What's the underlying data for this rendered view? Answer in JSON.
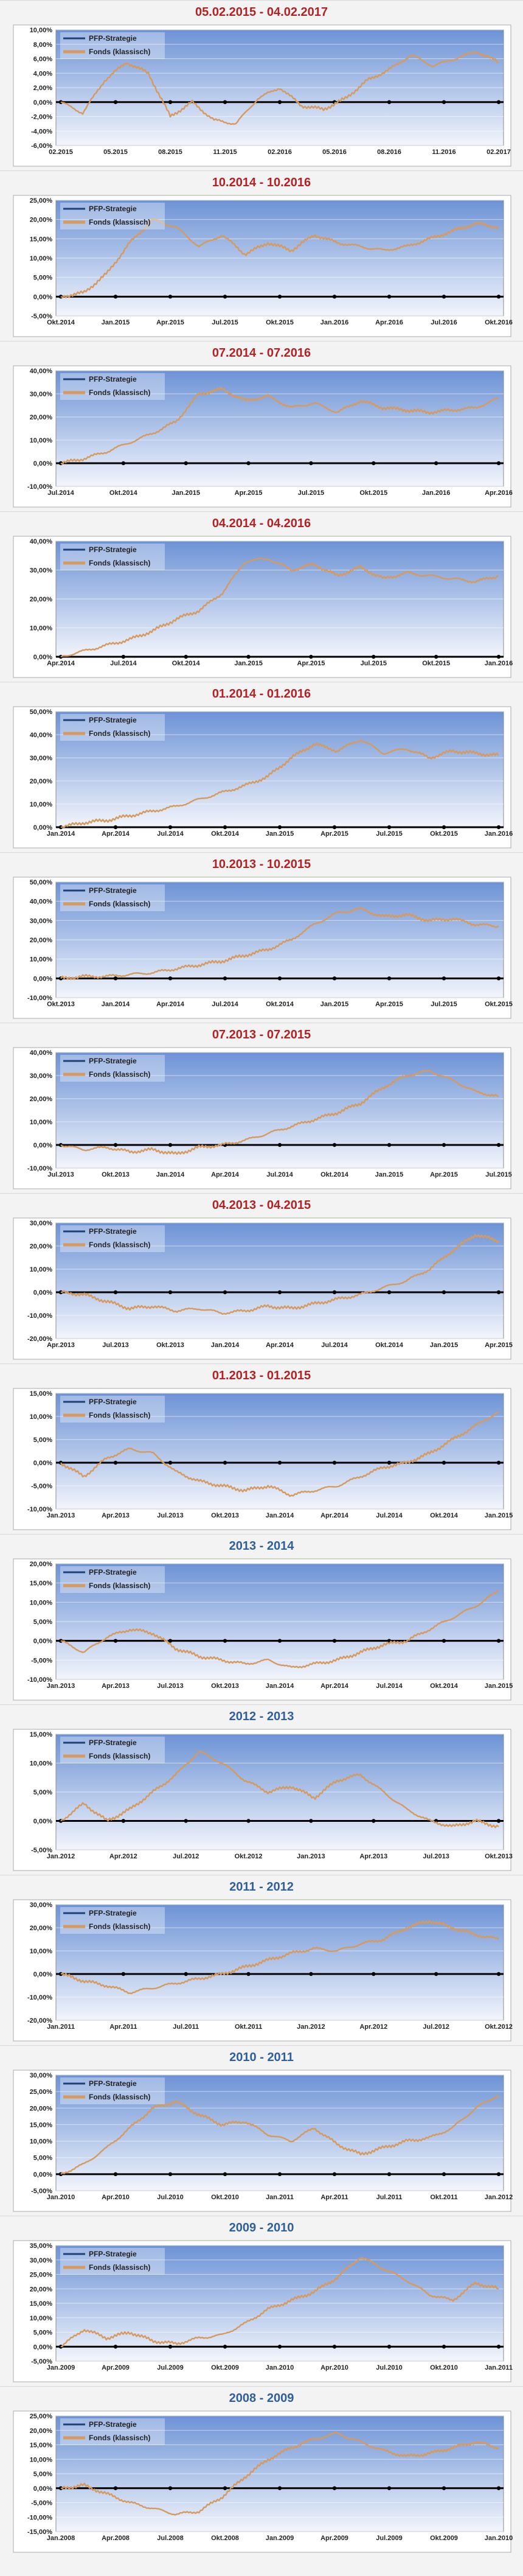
{
  "legend": {
    "strategy": "PFP-Strategie",
    "fund": "Fonds (klassisch)"
  },
  "colors": {
    "title_recent": "#b22222",
    "title_year": "#2f5f9a",
    "strategy_line": "#1f3f7a",
    "fund_line": "#d69a5e",
    "plot_bg_top": "#6d93d6",
    "plot_bg_bottom": "#f2f5fc",
    "zero_line": "#000000"
  },
  "chart_data": [
    {
      "type": "line",
      "title": "05.02.2015 - 04.02.2017",
      "title_style": "recent",
      "yticks": [
        "10,00%",
        "8,00%",
        "6,00%",
        "4,00%",
        "2,00%",
        "0,00%",
        "-2,00%",
        "-4,00%",
        "-6,00%"
      ],
      "xticks": [
        "02.2015",
        "05.2015",
        "08.2015",
        "11.2015",
        "02.2016",
        "05.2016",
        "08.2016",
        "11.2016",
        "02.2017"
      ],
      "ylim": [
        -6,
        10
      ],
      "legend": "top-left",
      "series": [
        {
          "name": "Fonds (klassisch)",
          "values": [
            0,
            -1.5,
            3,
            5.5,
            4,
            -2,
            0,
            -2.5,
            -3,
            0.5,
            2,
            -0.5,
            -1,
            0.5,
            3,
            4.5,
            6.5,
            5,
            6,
            7,
            5.5
          ]
        }
      ]
    },
    {
      "type": "line",
      "title": "10.2014 - 10.2016",
      "title_style": "recent",
      "yticks": [
        "25,00%",
        "20,00%",
        "15,00%",
        "10,00%",
        "5,00%",
        "0,00%",
        "-5,00%"
      ],
      "xticks": [
        "Okt.2014",
        "Jan.2015",
        "Apr.2015",
        "Jul.2015",
        "Okt.2015",
        "Jan.2016",
        "Apr.2016",
        "Jul.2016",
        "Okt.2016"
      ],
      "ylim": [
        -5,
        25
      ],
      "legend": "top-left",
      "series": [
        {
          "name": "Fonds (klassisch)",
          "values": [
            0,
            1,
            6,
            14,
            20,
            18,
            13,
            16,
            11,
            14,
            12,
            16,
            14,
            13,
            12,
            13,
            15,
            17,
            19,
            18
          ]
        }
      ]
    },
    {
      "type": "line",
      "title": "07.2014 - 07.2016",
      "title_style": "recent",
      "yticks": [
        "40,00%",
        "30,00%",
        "20,00%",
        "10,00%",
        "0,00%",
        "-10,00%"
      ],
      "xticks": [
        "Jul.2014",
        "Okt.2014",
        "Jan.2015",
        "Apr.2015",
        "Jul.2015",
        "Okt.2015",
        "Jan.2016",
        "Apr.2016"
      ],
      "ylim": [
        -10,
        40
      ],
      "legend": "top-left",
      "series": [
        {
          "name": "Fonds (klassisch)",
          "values": [
            0,
            2,
            5,
            9,
            13,
            18,
            30,
            32,
            27,
            29,
            24,
            26,
            22,
            27,
            24,
            23,
            22,
            23,
            24,
            28
          ]
        }
      ]
    },
    {
      "type": "line",
      "title": "04.2014 - 04.2016",
      "title_style": "recent",
      "yticks": [
        "40,00%",
        "30,00%",
        "20,00%",
        "10,00%",
        "0,00%"
      ],
      "xticks": [
        "Apr.2014",
        "Jul.2014",
        "Okt.2014",
        "Jan.2015",
        "Apr.2015",
        "Jul.2015",
        "Okt.2015",
        "Jan.2016"
      ],
      "ylim": [
        0,
        40
      ],
      "legend": "top-left",
      "series": [
        {
          "name": "Fonds (klassisch)",
          "values": [
            0,
            2,
            4,
            6,
            9,
            13,
            16,
            22,
            33,
            34,
            30,
            32,
            28,
            31,
            27,
            29,
            28,
            27,
            26,
            28
          ]
        }
      ]
    },
    {
      "type": "line",
      "title": "01.2014 - 01.2016",
      "title_style": "recent",
      "yticks": [
        "50,00%",
        "40,00%",
        "30,00%",
        "20,00%",
        "10,00%",
        "0,00%"
      ],
      "xticks": [
        "Jan.2014",
        "Apr.2014",
        "Jul.2014",
        "Okt.2014",
        "Jan.2015",
        "Apr.2015",
        "Jul.2015",
        "Okt.2015",
        "Jan.2016"
      ],
      "ylim": [
        0,
        50
      ],
      "legend": "top-left",
      "series": [
        {
          "name": "Fonds (klassisch)",
          "values": [
            0,
            2,
            3,
            5,
            7,
            9,
            12,
            15,
            18,
            22,
            30,
            36,
            33,
            38,
            32,
            34,
            30,
            33,
            32,
            31
          ]
        }
      ]
    },
    {
      "type": "line",
      "title": "10.2013 - 10.2015",
      "title_style": "recent",
      "yticks": [
        "50,00%",
        "40,00%",
        "30,00%",
        "20,00%",
        "10,00%",
        "0,00%",
        "-10,00%"
      ],
      "xticks": [
        "Okt.2013",
        "Jan.2014",
        "Apr.2014",
        "Jul.2014",
        "Okt.2014",
        "Jan.2015",
        "Apr.2015",
        "Jul.2015",
        "Okt.2015"
      ],
      "ylim": [
        -10,
        50
      ],
      "legend": "top-left",
      "series": [
        {
          "name": "Fonds (klassisch)",
          "values": [
            0,
            1,
            1,
            2,
            3,
            5,
            7,
            9,
            12,
            15,
            20,
            28,
            34,
            36,
            32,
            33,
            30,
            31,
            28,
            27
          ]
        }
      ]
    },
    {
      "type": "line",
      "title": "07.2013 - 07.2015",
      "title_style": "recent",
      "yticks": [
        "40,00%",
        "30,00%",
        "20,00%",
        "10,00%",
        "0,00%",
        "-10,00%"
      ],
      "xticks": [
        "Jul.2013",
        "Okt.2013",
        "Jan.2014",
        "Apr.2014",
        "Jul.2014",
        "Okt.2014",
        "Jan.2015",
        "Apr.2015",
        "Jul.2015"
      ],
      "ylim": [
        -10,
        40
      ],
      "legend": "top-left",
      "series": [
        {
          "name": "Fonds (klassisch)",
          "values": [
            0,
            -2,
            -1,
            -3,
            -2,
            -4,
            -1,
            0,
            2,
            5,
            8,
            11,
            14,
            18,
            25,
            30,
            32,
            28,
            23,
            21
          ]
        }
      ]
    },
    {
      "type": "line",
      "title": "04.2013 - 04.2015",
      "title_style": "recent",
      "yticks": [
        "30,00%",
        "20,00%",
        "10,00%",
        "0,00%",
        "-10,00%",
        "-20,00%"
      ],
      "xticks": [
        "Apr.2013",
        "Jul.2013",
        "Okt.2013",
        "Jan.2014",
        "Apr.2014",
        "Jul.2014",
        "Okt.2014",
        "Jan.2015",
        "Apr.2015"
      ],
      "ylim": [
        -20,
        30
      ],
      "legend": "top-left",
      "series": [
        {
          "name": "Fonds (klassisch)",
          "values": [
            0,
            -1,
            -4,
            -7,
            -6,
            -8,
            -7,
            -9,
            -8,
            -6,
            -7,
            -5,
            -3,
            -1,
            2,
            5,
            10,
            18,
            25,
            22
          ]
        }
      ]
    },
    {
      "type": "line",
      "title": "01.2013 - 01.2015",
      "title_style": "recent",
      "yticks": [
        "15,00%",
        "10,00%",
        "5,00%",
        "0,00%",
        "-5,00%",
        "-10,00%"
      ],
      "xticks": [
        "Jan.2013",
        "Apr.2013",
        "Jul.2013",
        "Okt.2013",
        "Jan.2014",
        "Apr.2014",
        "Jul.2014",
        "Okt.2014",
        "Jan.2015"
      ],
      "ylim": [
        -10,
        15
      ],
      "legend": "top-left",
      "series": [
        {
          "name": "Fonds (klassisch)",
          "values": [
            0,
            -3,
            1,
            3,
            2,
            -2,
            -4,
            -5,
            -6,
            -5,
            -7,
            -6,
            -5,
            -3,
            -1,
            0,
            2,
            5,
            8,
            11
          ]
        }
      ]
    },
    {
      "type": "line",
      "title": "2013 - 2014",
      "title_style": "year",
      "yticks": [
        "20,00%",
        "15,00%",
        "10,00%",
        "5,00%",
        "0,00%",
        "-5,00%",
        "-10,00%"
      ],
      "xticks": [
        "Jan.2013",
        "Apr.2013",
        "Jul.2013",
        "Okt.2013",
        "Jan.2014",
        "Apr.2014",
        "Jul.2014",
        "Okt.2014",
        "Jan.2015"
      ],
      "ylim": [
        -10,
        20
      ],
      "legend": "top-left",
      "series": [
        {
          "name": "Fonds (klassisch)",
          "values": [
            0,
            -3,
            1,
            3,
            2,
            -2,
            -4,
            -5,
            -6,
            -5,
            -7,
            -6,
            -5,
            -3,
            -1,
            0,
            3,
            6,
            9,
            13
          ]
        }
      ]
    },
    {
      "type": "line",
      "title": "2012 - 2013",
      "title_style": "year",
      "yticks": [
        "15,00%",
        "10,00%",
        "5,00%",
        "0,00%",
        "-5,00%"
      ],
      "xticks": [
        "Jan.2012",
        "Apr.2012",
        "Jul.2012",
        "Okt.2012",
        "Jan.2013",
        "Apr.2013",
        "Jul.2013",
        "Okt.2013"
      ],
      "ylim": [
        -5,
        15
      ],
      "legend": "top-left",
      "series": [
        {
          "name": "Fonds (klassisch)",
          "values": [
            0,
            3,
            0,
            2,
            5,
            8,
            12,
            10,
            7,
            5,
            6,
            4,
            7,
            8,
            5,
            2,
            0,
            -1,
            0,
            -1
          ]
        }
      ]
    },
    {
      "type": "line",
      "title": "2011 - 2012",
      "title_style": "year",
      "yticks": [
        "30,00%",
        "20,00%",
        "10,00%",
        "0,00%",
        "-10,00%",
        "-20,00%"
      ],
      "xticks": [
        "Jan.2011",
        "Apr.2011",
        "Jul.2011",
        "Okt.2011",
        "Jan.2012",
        "Apr.2012",
        "Jul.2012",
        "Okt.2012"
      ],
      "ylim": [
        -20,
        30
      ],
      "legend": "top-left",
      "series": [
        {
          "name": "Fonds (klassisch)",
          "values": [
            0,
            -3,
            -5,
            -8,
            -6,
            -4,
            -2,
            0,
            3,
            6,
            9,
            11,
            10,
            13,
            15,
            20,
            23,
            20,
            17,
            15
          ]
        }
      ]
    },
    {
      "type": "line",
      "title": "2010 - 2011",
      "title_style": "year",
      "yticks": [
        "30,00%",
        "25,00%",
        "20,00%",
        "15,00%",
        "10,00%",
        "5,00%",
        "0,00%",
        "-5,00%"
      ],
      "xticks": [
        "Jan.2010",
        "Apr.2010",
        "Jul.2010",
        "Okt.2010",
        "Jan.2011",
        "Apr.2011",
        "Jul.2011",
        "Okt.2011",
        "Jan.2012"
      ],
      "ylim": [
        -5,
        30
      ],
      "legend": "top-left",
      "series": [
        {
          "name": "Fonds (klassisch)",
          "values": [
            0,
            3,
            8,
            14,
            20,
            22,
            18,
            15,
            16,
            12,
            10,
            14,
            9,
            6,
            8,
            10,
            11,
            14,
            20,
            24
          ]
        }
      ]
    },
    {
      "type": "line",
      "title": "2009 - 2010",
      "title_style": "year",
      "yticks": [
        "35,00%",
        "30,00%",
        "25,00%",
        "20,00%",
        "15,00%",
        "10,00%",
        "5,00%",
        "0,00%",
        "-5,00%"
      ],
      "xticks": [
        "Jan.2009",
        "Apr.2009",
        "Jul.2009",
        "Okt.2009",
        "Jan.2010",
        "Apr.2010",
        "Jul.2010",
        "Okt.2010",
        "Jan.2011"
      ],
      "ylim": [
        -5,
        35
      ],
      "legend": "top-left",
      "series": [
        {
          "name": "Fonds (klassisch)",
          "values": [
            0,
            6,
            3,
            5,
            2,
            1,
            3,
            4,
            8,
            13,
            16,
            19,
            24,
            31,
            27,
            23,
            18,
            16,
            22,
            20
          ]
        }
      ]
    },
    {
      "type": "line",
      "title": "2008 - 2009",
      "title_style": "year",
      "yticks": [
        "25,00%",
        "20,00%",
        "15,00%",
        "10,00%",
        "5,00%",
        "0,00%",
        "-5,00%",
        "-10,00%",
        "-15,00%"
      ],
      "xticks": [
        "Jan.2008",
        "Apr.2008",
        "Jul.2008",
        "Okt.2008",
        "Jan.2009",
        "Apr.2009",
        "Jul.2009",
        "Okt.2009",
        "Jan.2010"
      ],
      "ylim": [
        -15,
        25
      ],
      "legend": "top-left",
      "series": [
        {
          "name": "Fonds (klassisch)",
          "values": [
            0,
            1,
            -2,
            -5,
            -7,
            -9,
            -8,
            -3,
            4,
            10,
            14,
            17,
            19,
            16,
            13,
            11,
            12,
            14,
            16,
            14
          ]
        }
      ]
    }
  ]
}
